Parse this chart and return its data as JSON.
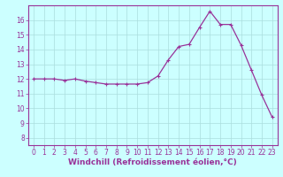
{
  "x": [
    0,
    1,
    2,
    3,
    4,
    5,
    6,
    7,
    8,
    9,
    10,
    11,
    12,
    13,
    14,
    15,
    16,
    17,
    18,
    19,
    20,
    21,
    22,
    23
  ],
  "y": [
    12.0,
    12.0,
    12.0,
    11.9,
    12.0,
    11.85,
    11.75,
    11.65,
    11.65,
    11.65,
    11.65,
    11.75,
    12.2,
    13.3,
    14.2,
    14.35,
    15.5,
    16.6,
    15.7,
    15.7,
    14.3,
    12.6,
    10.9,
    9.4
  ],
  "line_color": "#993399",
  "marker": "+",
  "marker_size": 3,
  "bg_color": "#ccffff",
  "grid_color": "#aadddd",
  "xlabel": "Windchill (Refroidissement éolien,°C)",
  "xlabel_fontsize": 6.5,
  "xlim": [
    -0.5,
    23.5
  ],
  "ylim": [
    7.5,
    17.0
  ],
  "yticks": [
    8,
    9,
    10,
    11,
    12,
    13,
    14,
    15,
    16
  ],
  "xticks": [
    0,
    1,
    2,
    3,
    4,
    5,
    6,
    7,
    8,
    9,
    10,
    11,
    12,
    13,
    14,
    15,
    16,
    17,
    18,
    19,
    20,
    21,
    22,
    23
  ],
  "tick_fontsize": 5.5,
  "tick_color": "#993399",
  "spine_color": "#993399",
  "line_width": 0.9,
  "marker_edge_width": 0.8
}
